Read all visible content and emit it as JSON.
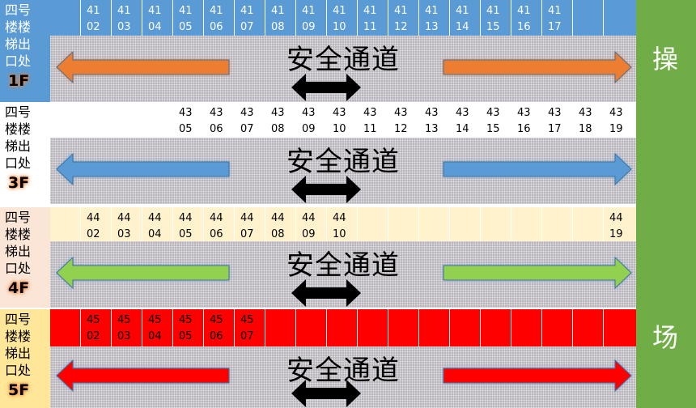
{
  "label_text": "四号\n楼楼\n梯出\n口处",
  "corridor_title": "安全通道",
  "side": {
    "top": "操",
    "bottom": "场"
  },
  "floors": [
    {
      "floor": "1F",
      "label_bg": "#5b9bd5",
      "label_color": "#ffffff",
      "header_bg": "#5b9bd5",
      "text_color": "#ffffff",
      "arrow_color": "#ed7d31",
      "cells": [
        "",
        "41\n02",
        "41\n03",
        "41\n04",
        "41\n05",
        "41\n06",
        "41\n07",
        "41\n08",
        "41\n09",
        "41\n10",
        "41\n11",
        "41\n12",
        "41\n13",
        "41\n14",
        "41\n15",
        "41\n16",
        "41\n17",
        "",
        " "
      ]
    },
    {
      "floor": "3F",
      "label_bg": "#ffffff",
      "label_color": "#000000",
      "header_bg": "#ffffff",
      "text_color": "#000000",
      "arrow_color": "#5b9bd5",
      "cells": [
        "",
        "",
        "",
        "",
        "43\n05",
        "43\n06",
        "43\n07",
        "43\n08",
        "43\n09",
        "43\n10",
        "43\n11",
        "43\n12",
        "43\n13",
        "43\n14",
        "43\n15",
        "43\n16",
        "43\n17",
        "43\n18",
        "43\n19"
      ]
    },
    {
      "floor": "4F",
      "label_bg": "#fbe5d6",
      "label_color": "#000000",
      "header_bg": "#fff2cc",
      "text_color": "#000000",
      "arrow_color": "#92d050",
      "cells": [
        "",
        "44\n02",
        "44\n03",
        "44\n04",
        "44\n05",
        "44\n06",
        "44\n07",
        "44\n08",
        "44\n09",
        "44\n10",
        "",
        "",
        "",
        "",
        "",
        "",
        "",
        "",
        "44\n19"
      ]
    },
    {
      "floor": "5F",
      "label_bg": "#ffe699",
      "label_color": "#000000",
      "header_bg": "#ff0000",
      "text_color": "#000000",
      "arrow_color": "#ff0000",
      "cells": [
        "",
        "45\n02",
        "45\n03",
        "45\n04",
        "45\n05",
        "45\n06",
        "45\n07",
        "",
        "",
        "",
        "",
        "",
        "",
        "",
        "",
        "",
        "",
        "",
        ""
      ]
    }
  ]
}
